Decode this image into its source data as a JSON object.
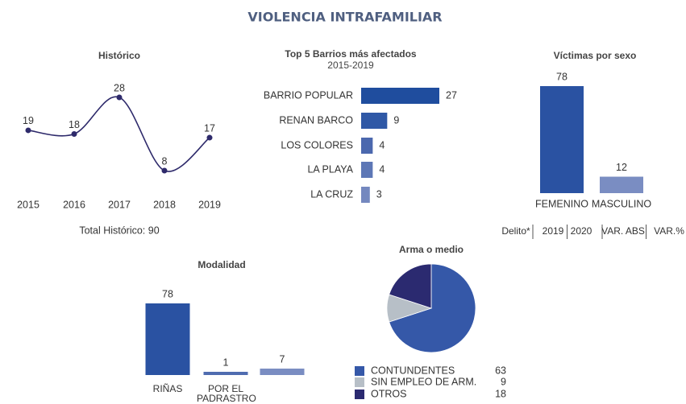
{
  "title": "VIOLENCIA INTRAFAMILIAR",
  "table_header": [
    "Delito*",
    "2019",
    "2020",
    "VAR. ABS",
    "VAR.%"
  ],
  "chart_data": [
    {
      "type": "line",
      "title": "Histórico",
      "categories": [
        "2015",
        "2016",
        "2017",
        "2018",
        "2019"
      ],
      "values": [
        19,
        18,
        28,
        8,
        17
      ],
      "color": "#2e2a6b",
      "annotation": "Total Histórico: 90"
    },
    {
      "type": "bar",
      "orientation": "horizontal",
      "title": "Top 5 Barrios más afectados",
      "subtitle": "2015-2019",
      "categories": [
        "BARRIO POPULAR",
        "RENAN BARCO",
        "LOS COLORES",
        "LA PLAYA",
        "LA CRUZ"
      ],
      "values": [
        27,
        9,
        4,
        4,
        3
      ],
      "colors": [
        "#1f4d9e",
        "#2f58a6",
        "#4b68ae",
        "#5d77b6",
        "#7488bf"
      ]
    },
    {
      "type": "bar",
      "orientation": "vertical",
      "title": "Víctimas por sexo",
      "categories": [
        "FEMENINO",
        "MASCULINO"
      ],
      "values": [
        78,
        12
      ],
      "colors": [
        "#2a52a2",
        "#7a8dc2"
      ]
    },
    {
      "type": "bar",
      "orientation": "vertical",
      "title": "Modalidad",
      "categories": [
        "RIÑAS",
        "POR EL PADRASTRO",
        null
      ],
      "values": [
        78,
        1,
        7
      ],
      "colors": [
        "#2a52a2",
        "#4f6cb0",
        "#7a8dc2"
      ]
    },
    {
      "type": "pie",
      "title": "Arma o medio",
      "categories": [
        "CONTUNDENTES",
        "SIN EMPLEO DE ARM.",
        "OTROS"
      ],
      "values": [
        63,
        9,
        18
      ],
      "colors": [
        "#3558a8",
        "#b7bfc7",
        "#2b2a70"
      ]
    }
  ]
}
